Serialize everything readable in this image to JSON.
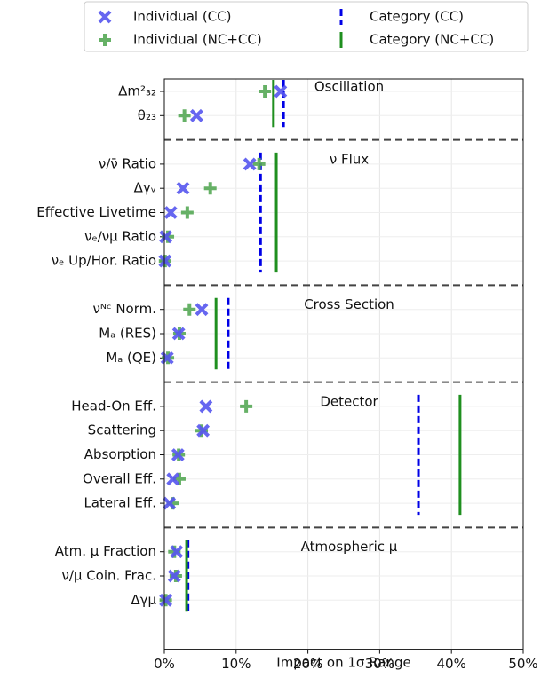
{
  "chart_data": {
    "type": "grouped-dot",
    "xlabel": "Impact on 1σ Range",
    "xlim": [
      0,
      50
    ],
    "xticks": [
      {
        "value": 0,
        "label": "0%"
      },
      {
        "value": 10,
        "label": "10%"
      },
      {
        "value": 20,
        "label": "20%"
      },
      {
        "value": 30,
        "label": "30%"
      },
      {
        "value": 40,
        "label": "40%"
      },
      {
        "value": 50,
        "label": "50%"
      }
    ],
    "grid": true,
    "legend": "top",
    "series": [
      {
        "name": "Individual (CC)",
        "color": "#5555ee",
        "marker": "x"
      },
      {
        "name": "Individual (NC+CC)",
        "color": "#55a855",
        "marker": "plus"
      },
      {
        "name": "Category (CC)",
        "color": "#0000e6",
        "marker": "dashed-line"
      },
      {
        "name": "Category (NC+CC)",
        "color": "#1f8f1f",
        "marker": "solid-line"
      }
    ],
    "groups": [
      {
        "name": "Oscillation",
        "categories": [
          "Δm²₃₂",
          "θ₂₃"
        ],
        "series": [
          {
            "values": [
              16.2,
              4.5
            ]
          },
          {
            "values": [
              14.0,
              2.8
            ]
          },
          {
            "value": 16.6
          },
          {
            "value": 15.2
          }
        ]
      },
      {
        "name": "ν Flux",
        "categories": [
          "ν/ν̄ Ratio",
          "Δγᵥ",
          "Effective Livetime",
          "νₑ/νμ Ratio",
          "νₑ Up/Hor. Ratio"
        ],
        "series": [
          {
            "values": [
              11.9,
              2.6,
              0.9,
              0.2,
              0.1
            ]
          },
          {
            "values": [
              13.2,
              6.4,
              3.2,
              0.5,
              0.1
            ]
          },
          {
            "value": 13.4
          },
          {
            "value": 15.6
          }
        ]
      },
      {
        "name": "Cross Section",
        "categories": [
          "νᴺᶜ Norm.",
          "Mₐ (RES)",
          "Mₐ (QE)"
        ],
        "series": [
          {
            "values": [
              5.2,
              2.0,
              0.4
            ]
          },
          {
            "values": [
              3.5,
              2.1,
              0.5
            ]
          },
          {
            "value": 8.9
          },
          {
            "value": 7.2
          }
        ]
      },
      {
        "name": "Detector",
        "categories": [
          "Head-On Eff.",
          "Scattering",
          "Absorption",
          "Overall Eff.",
          "Lateral Eff."
        ],
        "series": [
          {
            "values": [
              5.8,
              5.4,
              1.9,
              1.2,
              0.7
            ]
          },
          {
            "values": [
              11.4,
              5.2,
              2.0,
              2.1,
              1.2
            ]
          },
          {
            "value": 35.4
          },
          {
            "value": 41.2
          }
        ]
      },
      {
        "name": "Atmospheric μ",
        "categories": [
          "Atm. μ Fraction",
          "ν/μ Coin. Frac.",
          "Δγμ"
        ],
        "series": [
          {
            "values": [
              1.7,
              1.4,
              0.2
            ]
          },
          {
            "values": [
              1.4,
              1.6,
              0.2
            ]
          },
          {
            "value": 3.3
          },
          {
            "value": 3.1
          }
        ]
      }
    ]
  }
}
